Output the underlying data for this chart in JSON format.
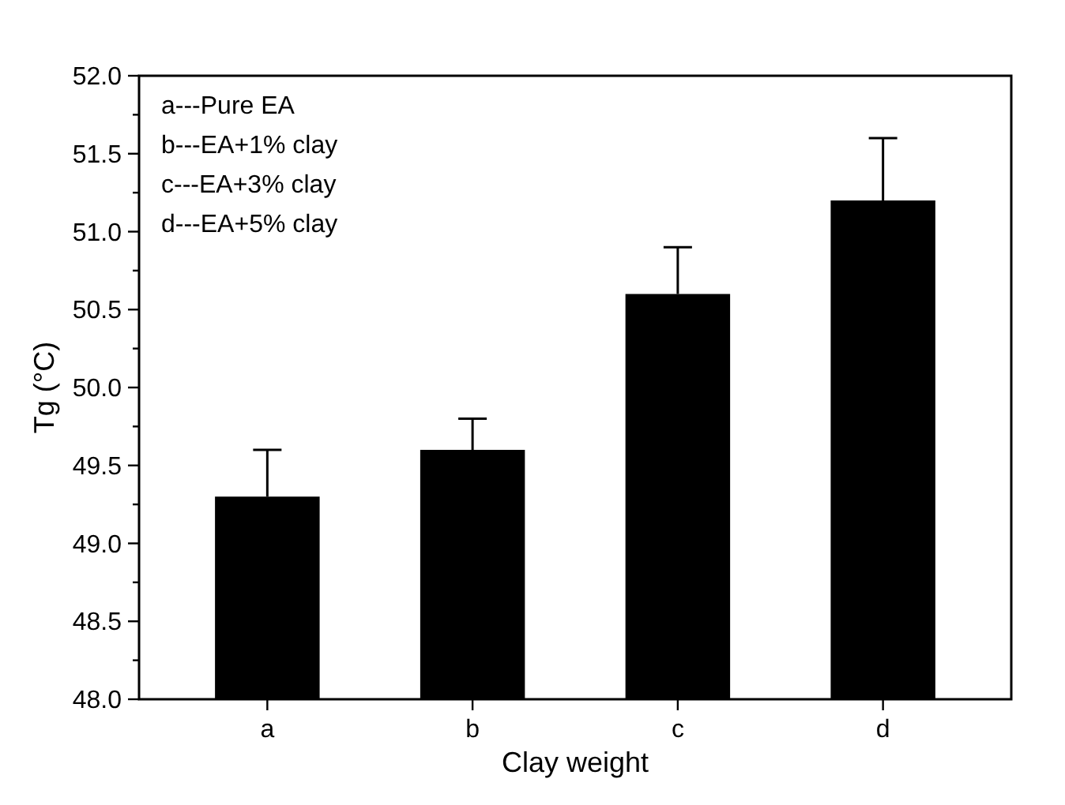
{
  "chart_data": {
    "type": "bar",
    "xlabel": "Clay weight",
    "ylabel": "Tg (°C)",
    "categories": [
      "a",
      "b",
      "c",
      "d"
    ],
    "values": [
      49.3,
      49.6,
      50.6,
      51.2
    ],
    "errors": [
      [
        49.3,
        49.6
      ],
      [
        49.6,
        49.8
      ],
      [
        50.6,
        50.9
      ],
      [
        51.2,
        51.6
      ]
    ],
    "color": "#000000",
    "ylim": [
      48,
      52
    ],
    "yticks": [
      {
        "value": 48,
        "label": "48.0"
      },
      {
        "value": 48.25,
        "label": null
      },
      {
        "value": 48.5,
        "label": "48.5"
      },
      {
        "value": 48.75,
        "label": null
      },
      {
        "value": 49,
        "label": "49.0"
      },
      {
        "value": 49.25,
        "label": null
      },
      {
        "value": 49.5,
        "label": "49.5"
      },
      {
        "value": 49.75,
        "label": null
      },
      {
        "value": 50,
        "label": "50.0"
      },
      {
        "value": 50.25,
        "label": null
      },
      {
        "value": 50.5,
        "label": "50.5"
      },
      {
        "value": 50.75,
        "label": null
      },
      {
        "value": 51,
        "label": "51.0"
      },
      {
        "value": 51.25,
        "label": null
      },
      {
        "value": 51.5,
        "label": "51.5"
      },
      {
        "value": 51.75,
        "label": null
      },
      {
        "value": 52,
        "label": "52.0"
      }
    ],
    "annotations": [
      "a---Pure EA",
      "b---EA+1% clay",
      "c---EA+3% clay",
      "d---EA+5% clay"
    ],
    "grid": false
  }
}
